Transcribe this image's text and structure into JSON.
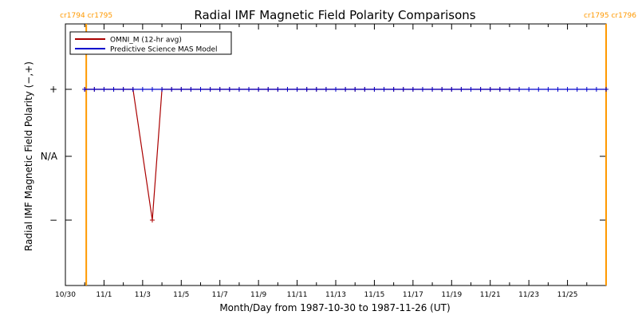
{
  "chart_data": {
    "type": "line",
    "title": "Radial IMF Magnetic Field Polarity Comparisons",
    "xlabel": "Month/Day from 1987-10-30 to 1987-11-26 (UT)",
    "ylabel": "Radial IMF Magnetic Field Polarity (−,+)",
    "x_tick_labels": [
      "10/30",
      "11/1",
      "11/3",
      "11/5",
      "11/7",
      "11/9",
      "11/11",
      "11/13",
      "11/15",
      "11/17",
      "11/19",
      "11/21",
      "11/23",
      "11/25"
    ],
    "x_tick_days": [
      0,
      2,
      4,
      6,
      8,
      10,
      12,
      14,
      16,
      18,
      20,
      22,
      24,
      26
    ],
    "xlim_days": [
      0,
      28
    ],
    "y_tick_labels": [
      "+",
      "N/A",
      "−"
    ],
    "y_tick_values": [
      1,
      0,
      -1
    ],
    "ylim": [
      -2,
      2
    ],
    "carrington_markers": [
      {
        "label": "cr1794 cr1795",
        "day": 1.08,
        "color": "#ff9900"
      },
      {
        "label": "cr1795 cr1796",
        "day": 28.0,
        "color": "#ff9900"
      }
    ],
    "legend": {
      "position": "top-left",
      "entries": [
        {
          "name": "OMNI_M (12-hr avg)",
          "color": "#aa0000"
        },
        {
          "name": "Predictive Science MAS Model",
          "color": "#0000cc"
        }
      ]
    },
    "series": [
      {
        "name": "OMNI_M (12-hr avg)",
        "color": "#aa0000",
        "markers": true,
        "x_days": [
          1,
          1.5,
          2,
          2.5,
          3,
          3.5,
          4.5,
          5,
          5.5,
          6,
          6.5,
          7,
          7.5,
          8,
          8.5,
          9,
          9.5,
          10,
          10.5,
          11,
          11.5,
          12,
          12.5,
          13,
          13.5,
          14,
          14.5,
          15,
          15.5,
          16,
          16.5,
          17,
          17.5,
          18,
          18.5,
          19,
          19.5,
          20,
          20.5,
          21,
          21.5,
          22,
          22.5,
          23,
          23.5
        ],
        "values": [
          1,
          1,
          1,
          1,
          1,
          1,
          -1,
          1,
          1,
          1,
          1,
          1,
          1,
          1,
          1,
          1,
          1,
          1,
          1,
          1,
          1,
          1,
          1,
          1,
          1,
          1,
          1,
          1,
          1,
          1,
          1,
          1,
          1,
          1,
          1,
          1,
          1,
          1,
          1,
          1,
          1,
          1,
          1,
          1,
          1
        ]
      },
      {
        "name": "Predictive Science MAS Model",
        "color": "#0000cc",
        "markers": true,
        "x_days": [
          1,
          1.5,
          2,
          2.5,
          3,
          3.5,
          4,
          4.5,
          5,
          5.5,
          6,
          6.5,
          7,
          7.5,
          8,
          8.5,
          9,
          9.5,
          10,
          10.5,
          11,
          11.5,
          12,
          12.5,
          13,
          13.5,
          14,
          14.5,
          15,
          15.5,
          16,
          16.5,
          17,
          17.5,
          18,
          18.5,
          19,
          19.5,
          20,
          20.5,
          21,
          21.5,
          22,
          22.5,
          23,
          23.5,
          24,
          24.5,
          25,
          25.5,
          26,
          26.5,
          27,
          27.5,
          28
        ],
        "values": [
          1,
          1,
          1,
          1,
          1,
          1,
          1,
          1,
          1,
          1,
          1,
          1,
          1,
          1,
          1,
          1,
          1,
          1,
          1,
          1,
          1,
          1,
          1,
          1,
          1,
          1,
          1,
          1,
          1,
          1,
          1,
          1,
          1,
          1,
          1,
          1,
          1,
          1,
          1,
          1,
          1,
          1,
          1,
          1,
          1,
          1,
          1,
          1,
          1,
          1,
          1,
          1,
          1,
          1,
          1
        ]
      }
    ]
  }
}
